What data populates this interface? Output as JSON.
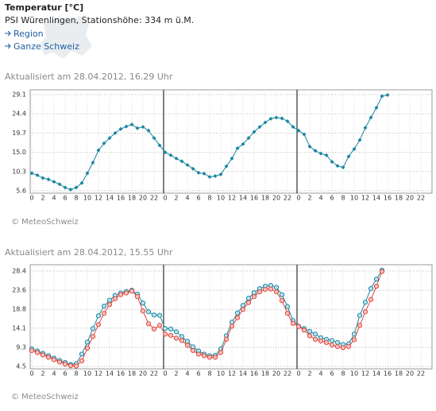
{
  "header": {
    "title": "Temperatur [°C]",
    "subtitle": "PSI Würenlingen, Stationshöhe: 334 m ü.M.",
    "links": [
      "Region",
      "Ganze Schweiz"
    ]
  },
  "chart_data": [
    {
      "type": "line",
      "updated": "Aktualisiert am 28.04.2012, 16.29 Uhr",
      "credit": "© MeteoSchweiz",
      "marker": "diamond",
      "grid": true,
      "categories": [
        "0",
        null,
        "2",
        null,
        "4",
        null,
        "6",
        null,
        "8",
        null,
        "10",
        null,
        "12",
        null,
        "14",
        null,
        "16",
        null,
        "18",
        null,
        "20",
        null,
        "22",
        null,
        "0",
        null,
        "2",
        null,
        "4",
        null,
        "6",
        null,
        "8",
        null,
        "10",
        null,
        "12",
        null,
        "14",
        null,
        "16",
        null,
        "18",
        null,
        "20",
        null,
        "22",
        null,
        "0",
        null,
        "2",
        null,
        "4",
        null,
        "6",
        null,
        "8",
        null,
        "10",
        null,
        "12",
        null,
        "14",
        null,
        "16",
        null,
        "18",
        null,
        "20",
        null,
        "22",
        null
      ],
      "series": [
        {
          "color": "#1a86a0",
          "values": [
            9.9,
            9.4,
            8.7,
            8.4,
            7.8,
            7.2,
            6.4,
            5.9,
            6.4,
            7.5,
            9.9,
            12.5,
            15.5,
            17.2,
            18.5,
            19.7,
            20.7,
            21.3,
            21.8,
            20.9,
            21.2,
            20.3,
            18.5,
            16.7,
            15.0,
            14.3,
            13.5,
            12.8,
            11.9,
            11.0,
            10.0,
            9.8,
            9.0,
            9.2,
            9.6,
            11.6,
            13.5,
            16.0,
            17.0,
            18.5,
            20.0,
            21.2,
            22.3,
            23.2,
            23.5,
            23.3,
            22.6,
            21.2,
            20.3,
            19.4,
            16.4,
            15.4,
            14.7,
            14.3,
            12.7,
            11.7,
            11.3,
            14.0,
            15.8,
            18.0,
            21.0,
            23.5,
            25.9,
            28.7,
            29.0,
            null,
            null,
            null,
            null,
            null,
            null,
            null
          ]
        }
      ],
      "ylim": [
        5.6,
        29.1
      ],
      "yticks": [
        5.6,
        10.3,
        {
          "value": 15,
          "label": "15.0"
        },
        19.7,
        24.4,
        29.1
      ]
    },
    {
      "type": "line",
      "updated": "Aktualisiert am 28.04.2012, 15.55 Uhr",
      "credit": "© MeteoSchweiz",
      "marker": "circle",
      "grid": true,
      "categories": [
        "0",
        null,
        "2",
        null,
        "4",
        null,
        "6",
        null,
        "8",
        null,
        "10",
        null,
        "12",
        null,
        "14",
        null,
        "16",
        null,
        "18",
        null,
        "20",
        null,
        "22",
        null,
        "0",
        null,
        "2",
        null,
        "4",
        null,
        "6",
        null,
        "8",
        null,
        "10",
        null,
        "12",
        null,
        "14",
        null,
        "16",
        null,
        "18",
        null,
        "20",
        null,
        "22",
        null,
        "0",
        null,
        "2",
        null,
        "4",
        null,
        "6",
        null,
        "8",
        null,
        "10",
        null,
        "12",
        null,
        "14",
        null,
        "16",
        null,
        "18",
        null,
        "20",
        null,
        "22",
        null
      ],
      "series": [
        {
          "color": "#1a86a0",
          "values": [
            8.9,
            8.4,
            7.8,
            7.2,
            6.6,
            6.0,
            5.5,
            5.0,
            5.2,
            7.6,
            10.6,
            14.0,
            17.2,
            19.6,
            21.1,
            22.3,
            22.9,
            23.3,
            23.6,
            22.6,
            20.4,
            18.2,
            17.4,
            17.3,
            14.0,
            13.9,
            13.2,
            12.0,
            10.8,
            9.4,
            8.4,
            7.6,
            7.2,
            7.3,
            8.9,
            12.2,
            15.6,
            17.9,
            19.8,
            21.6,
            23.0,
            24.0,
            24.6,
            24.8,
            24.3,
            22.5,
            19.5,
            16.0,
            14.6,
            14.0,
            13.3,
            12.6,
            11.7,
            11.3,
            11.0,
            10.5,
            10.0,
            10.2,
            12.6,
            17.3,
            20.6,
            24.0,
            26.4,
            28.6,
            null,
            null,
            null,
            null,
            null,
            null,
            null,
            null
          ]
        },
        {
          "color": "#e0443a",
          "values": [
            8.5,
            8.0,
            7.4,
            6.8,
            6.2,
            5.6,
            5.1,
            4.7,
            4.6,
            5.9,
            9.1,
            12.0,
            15.0,
            17.8,
            20.0,
            21.5,
            22.5,
            22.9,
            23.4,
            22.0,
            18.4,
            15.2,
            13.9,
            14.8,
            12.6,
            12.3,
            11.6,
            11.0,
            9.8,
            8.5,
            7.6,
            7.2,
            6.8,
            6.8,
            8.0,
            11.3,
            14.6,
            16.7,
            18.8,
            20.5,
            22.0,
            23.2,
            23.8,
            23.9,
            23.2,
            21.0,
            17.8,
            15.3,
            14.5,
            13.6,
            12.2,
            11.3,
            10.9,
            10.5,
            9.9,
            9.5,
            9.2,
            9.5,
            11.2,
            14.8,
            18.2,
            21.3,
            24.6,
            28.3,
            null,
            null,
            null,
            null,
            null,
            null,
            null,
            null
          ]
        }
      ],
      "ylim": [
        4.5,
        28.4
      ],
      "yticks": [
        4.5,
        9.3,
        14.1,
        18.8,
        23.6,
        28.4
      ]
    }
  ]
}
